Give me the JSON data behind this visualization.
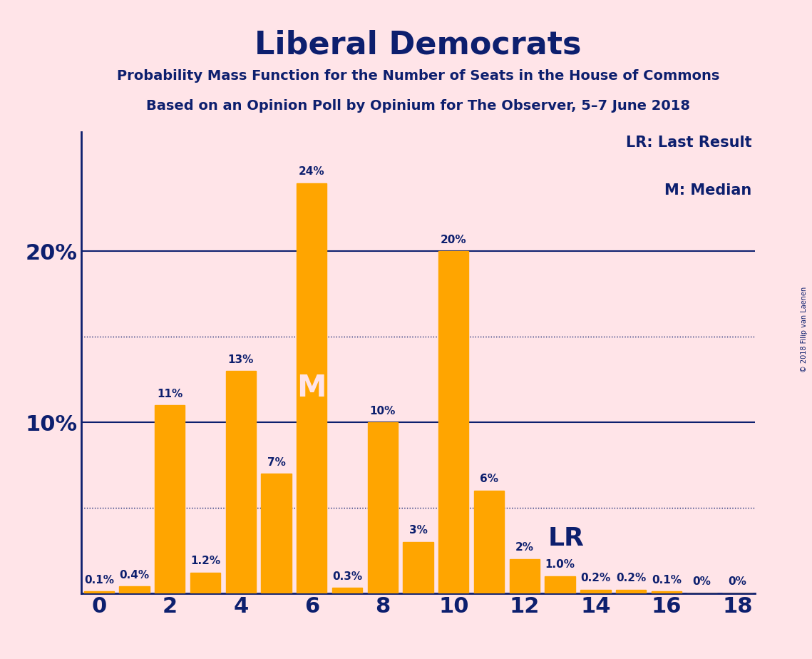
{
  "title": "Liberal Democrats",
  "subtitle1": "Probability Mass Function for the Number of Seats in the House of Commons",
  "subtitle2": "Based on an Opinion Poll by Opinium for The Observer, 5–7 June 2018",
  "copyright": "© 2018 Filip van Laenen",
  "categories": [
    0,
    1,
    2,
    3,
    4,
    5,
    6,
    7,
    8,
    9,
    10,
    11,
    12,
    13,
    14,
    15,
    16,
    17,
    18
  ],
  "values": [
    0.1,
    0.4,
    11,
    1.2,
    13,
    7,
    24,
    0.3,
    10,
    3,
    20,
    6,
    2,
    1.0,
    0.2,
    0.2,
    0.1,
    0,
    0
  ],
  "bar_color": "#FFA500",
  "background_color": "#FFE4E8",
  "text_color": "#0D1F6E",
  "axis_color": "#0D1F6E",
  "median_seat": 6,
  "lr_seat": 12,
  "xlim": [
    -0.5,
    18.5
  ],
  "ylim": [
    0,
    27
  ],
  "solid_yticks": [
    10,
    20
  ],
  "dotted_yticks": [
    5,
    15
  ],
  "legend_lr": "LR: Last Result",
  "legend_m": "M: Median",
  "title_fontsize": 32,
  "subtitle_fontsize": 14,
  "tick_fontsize": 22,
  "label_fontsize": 11,
  "legend_fontsize": 15
}
